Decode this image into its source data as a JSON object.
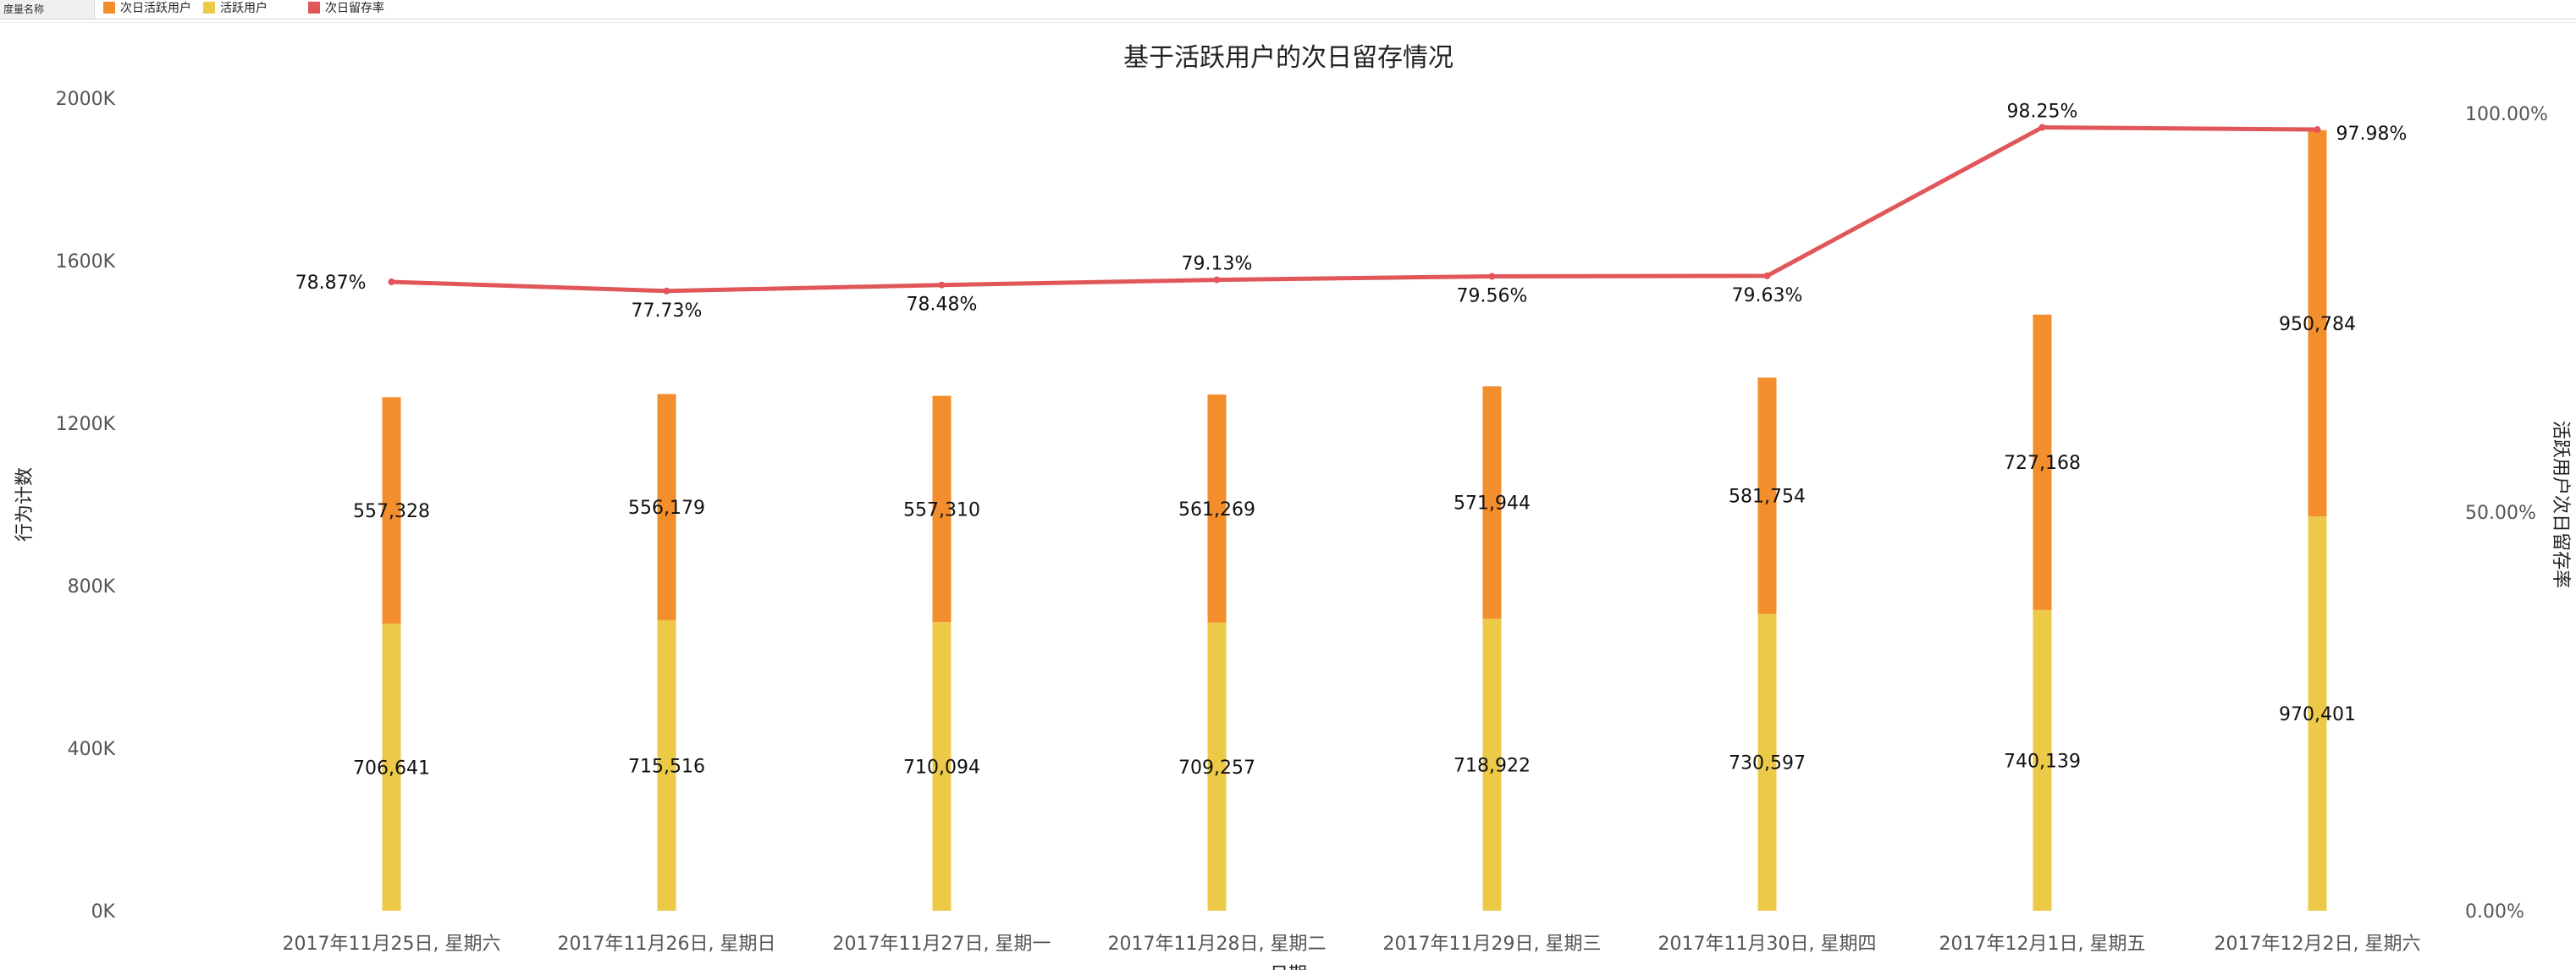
{
  "legend": {
    "title": "度量名称",
    "items": [
      {
        "label": "次日活跃用户",
        "color": "#F28E2B"
      },
      {
        "label": "活跃用户",
        "color": "#EDC948"
      },
      {
        "label": "次日留存率",
        "color": "#E15759"
      }
    ]
  },
  "chart_data": {
    "type": "bar",
    "title": "基于活跃用户的次日留存情况",
    "xlabel": "日期",
    "ylabel": "行为计数",
    "y2label": "活跃用户次日留存率",
    "categories": [
      "2017年11月25日, 星期六",
      "2017年11月26日, 星期日",
      "2017年11月27日, 星期一",
      "2017年11月28日, 星期二",
      "2017年11月29日, 星期三",
      "2017年11月30日, 星期四",
      "2017年12月1日, 星期五",
      "2017年12月2日, 星期六"
    ],
    "stacked": true,
    "series": [
      {
        "name": "活跃用户",
        "type": "bar",
        "color": "#EDC948",
        "values": [
          706641,
          715516,
          710094,
          709257,
          718922,
          730597,
          740139,
          970401
        ],
        "labels": [
          "706,641",
          "715,516",
          "710,094",
          "709,257",
          "718,922",
          "730,597",
          "740,139",
          "970,401"
        ]
      },
      {
        "name": "次日活跃用户",
        "type": "bar",
        "color": "#F28E2B",
        "values": [
          557328,
          556179,
          557310,
          561269,
          571944,
          581754,
          727168,
          950784
        ],
        "labels": [
          "557,328",
          "556,179",
          "557,310",
          "561,269",
          "571,944",
          "581,754",
          "727,168",
          "950,784"
        ]
      },
      {
        "name": "次日留存率",
        "type": "line",
        "axis": "right",
        "color": "#E15759",
        "values": [
          78.87,
          77.73,
          78.48,
          79.13,
          79.56,
          79.63,
          98.25,
          97.98
        ],
        "labels": [
          "78.87%",
          "77.73%",
          "78.48%",
          "79.13%",
          "79.56%",
          "79.63%",
          "98.25%",
          "97.98%"
        ]
      }
    ],
    "ylim": [
      0,
      2000000
    ],
    "yticks": [
      0,
      400000,
      800000,
      1200000,
      1600000,
      2000000
    ],
    "yticklabels": [
      "0K",
      "400K",
      "800K",
      "1200K",
      "1600K",
      "2000K"
    ],
    "y2lim": [
      0,
      100
    ],
    "y2ticks": [
      0,
      50,
      100
    ],
    "y2ticklabels": [
      "0.00%",
      "50.00%",
      "100.00%"
    ],
    "grid": false,
    "legend_position": "top-left"
  }
}
